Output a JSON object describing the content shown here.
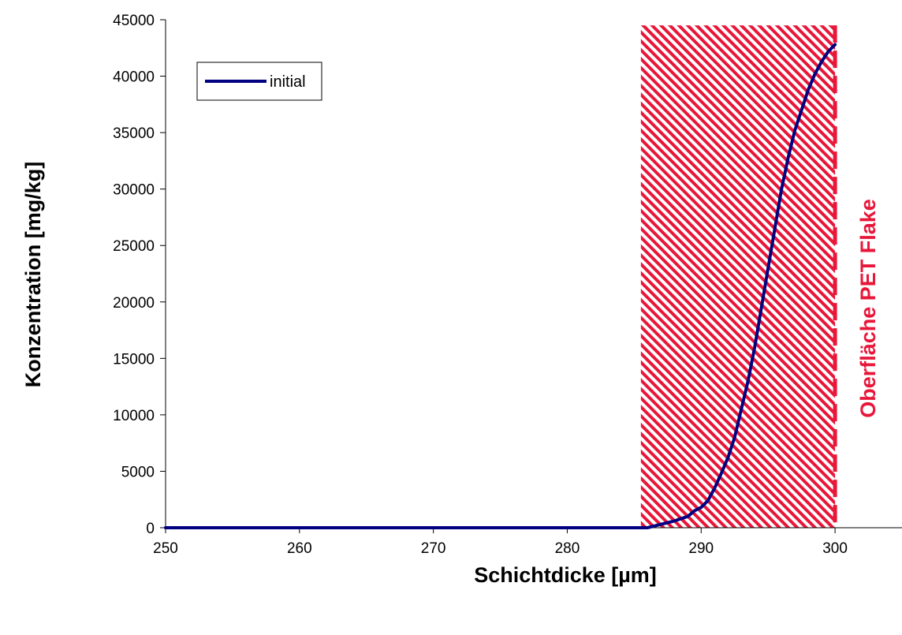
{
  "chart_data": {
    "type": "line",
    "xlabel": "Schichtdicke [µm]",
    "ylabel": "Konzentration [mg/kg]",
    "xlim": [
      250,
      305
    ],
    "ylim": [
      0,
      45000
    ],
    "x_ticks": [
      250,
      260,
      270,
      280,
      290,
      300
    ],
    "y_ticks": [
      0,
      5000,
      10000,
      15000,
      20000,
      25000,
      30000,
      35000,
      40000,
      45000
    ],
    "grid": false,
    "legend_position": "top-left",
    "series": [
      {
        "name": "initial",
        "color": "#000080",
        "x": [
          250,
          260,
          270,
          280,
          286,
          287,
          288,
          289,
          289.5,
          290,
          290.5,
          291,
          291.5,
          292,
          292.5,
          293,
          293.5,
          294,
          294.5,
          295,
          295.5,
          296,
          296.5,
          297,
          297.5,
          298,
          298.5,
          299,
          299.5,
          300
        ],
        "y": [
          0,
          0,
          0,
          0,
          0,
          300,
          600,
          1000,
          1500,
          1800,
          2400,
          3500,
          4800,
          6200,
          8000,
          10500,
          13000,
          16000,
          19500,
          23000,
          26500,
          30000,
          32800,
          35200,
          37000,
          38800,
          40200,
          41300,
          42200,
          42800
        ]
      }
    ],
    "highlight_region": {
      "x_range": [
        285.5,
        300
      ],
      "y_top": 44500,
      "fill": "hatched",
      "color": "#e8173a"
    },
    "reference_line": {
      "x": 300,
      "style": "dashed",
      "color": "#e8173a",
      "label": "Oberfläche PET Flake"
    }
  }
}
